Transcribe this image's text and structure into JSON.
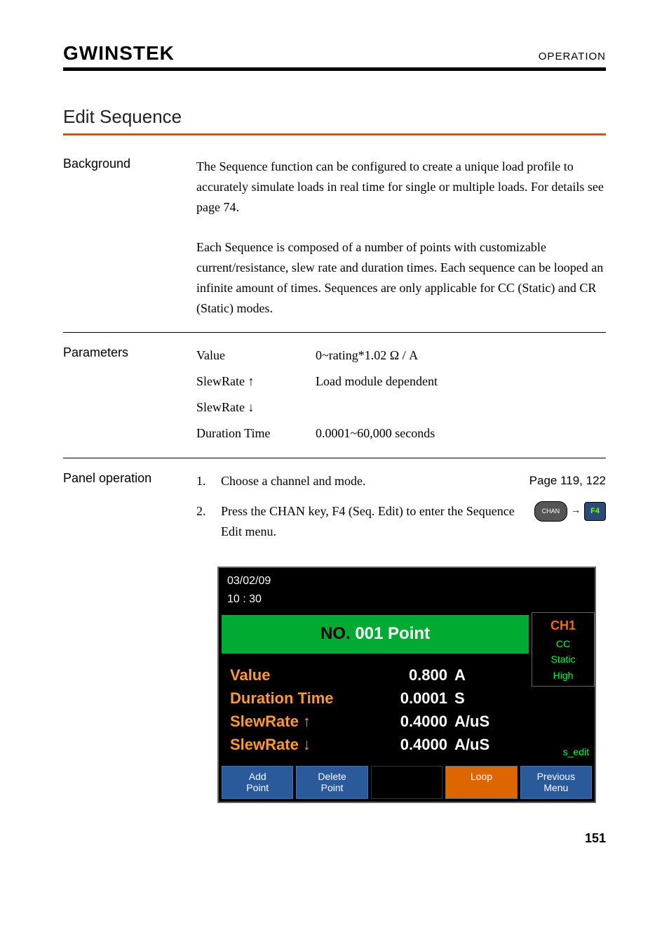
{
  "header": {
    "logo": "GWINSTEK",
    "right": "OPERATION"
  },
  "section": {
    "title": "Edit Sequence"
  },
  "background": {
    "label": "Background",
    "para1": "The Sequence function can be configured to create a unique load profile to accurately simulate loads in real time for single or multiple loads. For details see page 74.",
    "para2": "Each Sequence is composed of a number of points with customizable current/resistance, slew rate and duration times. Each sequence can be looped an infinite amount of times. Sequences are only applicable for CC (Static) and CR (Static) modes."
  },
  "parameters": {
    "label": "Parameters",
    "rows": [
      {
        "name": "Value",
        "value": "0~rating*1.02 Ω / A"
      },
      {
        "name": "SlewRate ↑",
        "value": "Load module dependent"
      },
      {
        "name": "SlewRate ↓",
        "value": ""
      },
      {
        "name": "Duration Time",
        "value": "0.0001~60,000 seconds"
      }
    ]
  },
  "panel": {
    "label": "Panel operation",
    "items": [
      {
        "num": "1.",
        "text": "Choose a channel and mode.",
        "ref": "Page 119, 122"
      },
      {
        "num": "2.",
        "text": "Press the CHAN key, F4 (Seq. Edit) to enter the Sequence Edit menu.",
        "keys": {
          "chan": "CHAN",
          "f4": "F4"
        }
      }
    ]
  },
  "screen": {
    "date": "03/02/09",
    "time": "10 : 30",
    "title_no": "NO.",
    "title_num": "001",
    "title_point": "Point",
    "side": {
      "ch": "CH1",
      "mode1": "CC",
      "mode2": "Static",
      "mode3": "High",
      "edit": "s_edit"
    },
    "rows": [
      {
        "label": "Value",
        "value": "0.800",
        "unit": "A"
      },
      {
        "label": "Duration Time",
        "value": "0.0001",
        "unit": "S"
      },
      {
        "label": "SlewRate ↑",
        "value": "0.4000",
        "unit": "A/uS"
      },
      {
        "label": "SlewRate ↓",
        "value": "0.4000",
        "unit": "A/uS"
      }
    ],
    "buttons": [
      {
        "line1": "Add",
        "line2": "Point",
        "color": "blue"
      },
      {
        "line1": "Delete",
        "line2": "Point",
        "color": "blue"
      },
      {
        "line1": "",
        "line2": "",
        "color": "empty"
      },
      {
        "line1": "Loop",
        "line2": "",
        "color": "orange"
      },
      {
        "line1": "Previous",
        "line2": "Menu",
        "color": "blue"
      }
    ]
  },
  "page_num": "151",
  "colors": {
    "divider_orange": "#cc5500",
    "screen_bg": "#000000",
    "screen_green": "#00aa33",
    "screen_label_orange": "#ff9933",
    "screen_side_orange": "#ff6600",
    "screen_side_green": "#00ff44",
    "btn_blue": "#2a5a9a",
    "btn_orange": "#dd6600"
  }
}
